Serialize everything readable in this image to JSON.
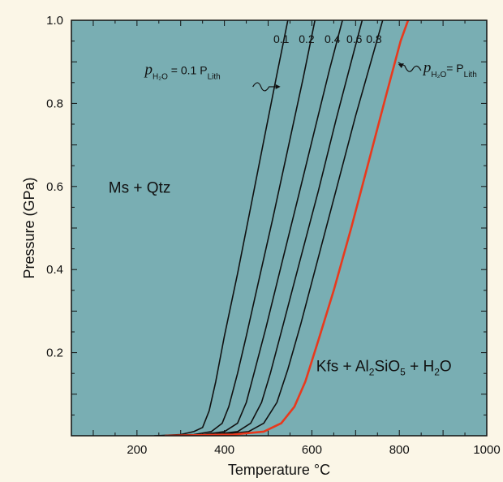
{
  "chart_data": {
    "type": "line",
    "xlabel": "Temperature",
    "xunit": "°C",
    "ylabel": "Pressure (GPa)",
    "xlim": [
      50,
      1000
    ],
    "ylim": [
      0,
      1.0
    ],
    "x_ticks": [
      200,
      400,
      600,
      800,
      1000
    ],
    "y_ticks": [
      0.2,
      0.4,
      0.6,
      0.8,
      1.0
    ],
    "y_tick_labels": [
      "0.2",
      "0.4",
      "0.6",
      "0.8",
      "1.0"
    ],
    "colors": {
      "plot_bg": "#79aeb3",
      "page_bg": "#fbf6e7",
      "black_curve": "#111111",
      "red_curve": "#e8391d"
    },
    "series": [
      {
        "name": "0.1",
        "color": "#111111",
        "points": [
          [
            240,
            0.0
          ],
          [
            300,
            0.003
          ],
          [
            330,
            0.01
          ],
          [
            350,
            0.02
          ],
          [
            365,
            0.06
          ],
          [
            380,
            0.13
          ],
          [
            400,
            0.24
          ],
          [
            430,
            0.39
          ],
          [
            460,
            0.55
          ],
          [
            490,
            0.71
          ],
          [
            520,
            0.87
          ],
          [
            545,
            1.0
          ]
        ]
      },
      {
        "name": "0.2",
        "color": "#111111",
        "points": [
          [
            250,
            0.0
          ],
          [
            330,
            0.003
          ],
          [
            370,
            0.01
          ],
          [
            395,
            0.03
          ],
          [
            410,
            0.07
          ],
          [
            430,
            0.15
          ],
          [
            450,
            0.24
          ],
          [
            480,
            0.38
          ],
          [
            510,
            0.52
          ],
          [
            545,
            0.69
          ],
          [
            580,
            0.86
          ],
          [
            607,
            1.0
          ]
        ]
      },
      {
        "name": "0.4",
        "color": "#111111",
        "points": [
          [
            255,
            0.0
          ],
          [
            350,
            0.003
          ],
          [
            400,
            0.01
          ],
          [
            430,
            0.03
          ],
          [
            450,
            0.08
          ],
          [
            470,
            0.16
          ],
          [
            495,
            0.26
          ],
          [
            530,
            0.41
          ],
          [
            570,
            0.58
          ],
          [
            605,
            0.73
          ],
          [
            640,
            0.88
          ],
          [
            670,
            1.0
          ]
        ]
      },
      {
        "name": "0.6",
        "color": "#111111",
        "points": [
          [
            260,
            0.0
          ],
          [
            370,
            0.003
          ],
          [
            430,
            0.01
          ],
          [
            460,
            0.03
          ],
          [
            485,
            0.08
          ],
          [
            505,
            0.15
          ],
          [
            535,
            0.27
          ],
          [
            575,
            0.43
          ],
          [
            615,
            0.59
          ],
          [
            655,
            0.76
          ],
          [
            690,
            0.9
          ],
          [
            715,
            1.0
          ]
        ]
      },
      {
        "name": "0.8",
        "color": "#111111",
        "points": [
          [
            265,
            0.0
          ],
          [
            390,
            0.003
          ],
          [
            455,
            0.01
          ],
          [
            490,
            0.03
          ],
          [
            520,
            0.08
          ],
          [
            545,
            0.16
          ],
          [
            575,
            0.27
          ],
          [
            615,
            0.43
          ],
          [
            660,
            0.61
          ],
          [
            700,
            0.77
          ],
          [
            735,
            0.9
          ],
          [
            762,
            1.0
          ]
        ]
      },
      {
        "name": "P_H2O = P_Lith",
        "color": "#e8391d",
        "points": [
          [
            265,
            0.0
          ],
          [
            420,
            0.003
          ],
          [
            490,
            0.01
          ],
          [
            530,
            0.03
          ],
          [
            560,
            0.07
          ],
          [
            585,
            0.13
          ],
          [
            615,
            0.23
          ],
          [
            650,
            0.35
          ],
          [
            690,
            0.5
          ],
          [
            730,
            0.66
          ],
          [
            770,
            0.82
          ],
          [
            803,
            0.95
          ],
          [
            820,
            1.0
          ]
        ]
      }
    ],
    "curve_labels": [
      "0.1",
      "0.2",
      "0.4",
      "0.6",
      "0.8"
    ],
    "region_labels": {
      "upper_left": "Ms + Qtz",
      "lower_right": {
        "kfs": "Kfs + Al",
        "two": "2",
        "sio": "SiO",
        "five": "5",
        "plus_h": " + H",
        "two_b": "2",
        "o": "O"
      }
    },
    "annotations": {
      "left": {
        "p": "p",
        "sub": "H₂O",
        "eq": " = 0.1 P",
        "lith": "Lith"
      },
      "right": {
        "p": "p",
        "sub": "H₂O",
        "eq": "= P",
        "lith": "Lith"
      }
    }
  }
}
